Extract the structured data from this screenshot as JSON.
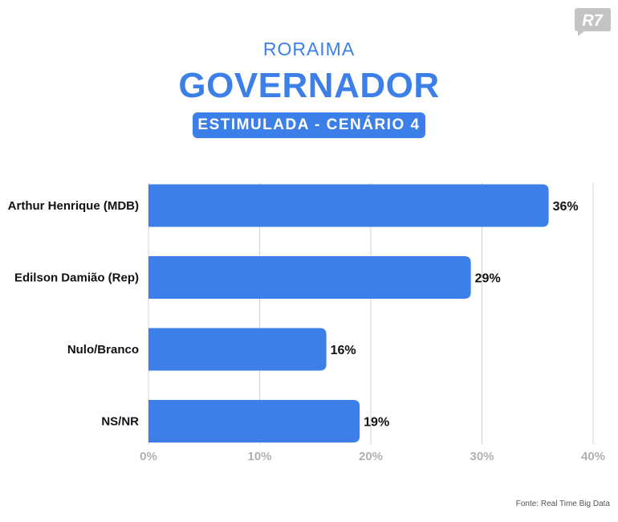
{
  "header": {
    "region": "RORAIMA",
    "title": "GOVERNADOR",
    "scenario": "ESTIMULADA - CENÁRIO 4"
  },
  "logo": {
    "text": "R7",
    "icon": "r7-logo-icon"
  },
  "source": "Fonte: Real Time Big Data",
  "colors": {
    "accent": "#3d7fe8",
    "grid": "#d0d0d0",
    "axis_labels": "#b0b0b0"
  },
  "chart_data": {
    "type": "bar",
    "orientation": "horizontal",
    "categories": [
      "Arthur Henrique (MDB)",
      "Edilson Damião (Rep)",
      "Nulo/Branco",
      "NS/NR"
    ],
    "values": [
      36,
      29,
      16,
      19
    ],
    "value_labels": [
      "36%",
      "29%",
      "16%",
      "19%"
    ],
    "xlim": [
      0,
      40
    ],
    "xticks": [
      0,
      10,
      20,
      30,
      40
    ],
    "xtick_labels": [
      "0%",
      "10%",
      "20%",
      "30%",
      "40%"
    ],
    "grid": true,
    "bar_color": "#3d7fe8"
  }
}
